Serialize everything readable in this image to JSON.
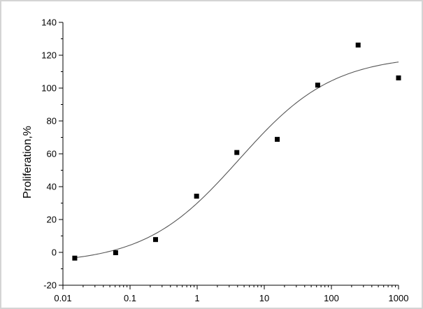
{
  "chart_data": {
    "type": "scatter",
    "title": "",
    "xlabel": "",
    "ylabel": "Proliferation,%",
    "x_scale": "log",
    "xlim": [
      0.01,
      1000
    ],
    "ylim": [
      -20,
      140
    ],
    "x_ticks": [
      {
        "value": 0.01,
        "label": "0.01"
      },
      {
        "value": 0.1,
        "label": "0.1"
      },
      {
        "value": 1,
        "label": "1"
      },
      {
        "value": 10,
        "label": "10"
      },
      {
        "value": 100,
        "label": "100"
      },
      {
        "value": 1000,
        "label": "1000"
      }
    ],
    "y_ticks": [
      {
        "value": -20,
        "label": "-20"
      },
      {
        "value": 0,
        "label": "0"
      },
      {
        "value": 20,
        "label": "20"
      },
      {
        "value": 40,
        "label": "40"
      },
      {
        "value": 60,
        "label": "60"
      },
      {
        "value": 80,
        "label": "80"
      },
      {
        "value": 100,
        "label": "100"
      },
      {
        "value": 120,
        "label": "120"
      },
      {
        "value": 140,
        "label": "140"
      }
    ],
    "grid": false,
    "series": [
      {
        "type": "scatter",
        "marker": "square",
        "color": "#000000",
        "points": [
          {
            "x": 0.015,
            "y": -3.5
          },
          {
            "x": 0.061,
            "y": -0.2
          },
          {
            "x": 0.24,
            "y": 7.8
          },
          {
            "x": 0.98,
            "y": 34.2
          },
          {
            "x": 3.9,
            "y": 60.8
          },
          {
            "x": 15.6,
            "y": 68.8
          },
          {
            "x": 62.5,
            "y": 101.8
          },
          {
            "x": 250,
            "y": 126.2
          },
          {
            "x": 1000,
            "y": 106.2
          }
        ]
      },
      {
        "type": "line",
        "color": "#555555",
        "fit": "4PL logistic",
        "curve_params": {
          "bottom": -7,
          "top": 120,
          "ec50": 4.2,
          "hill": 0.62
        },
        "x_range": [
          0.015,
          1000
        ]
      }
    ]
  }
}
